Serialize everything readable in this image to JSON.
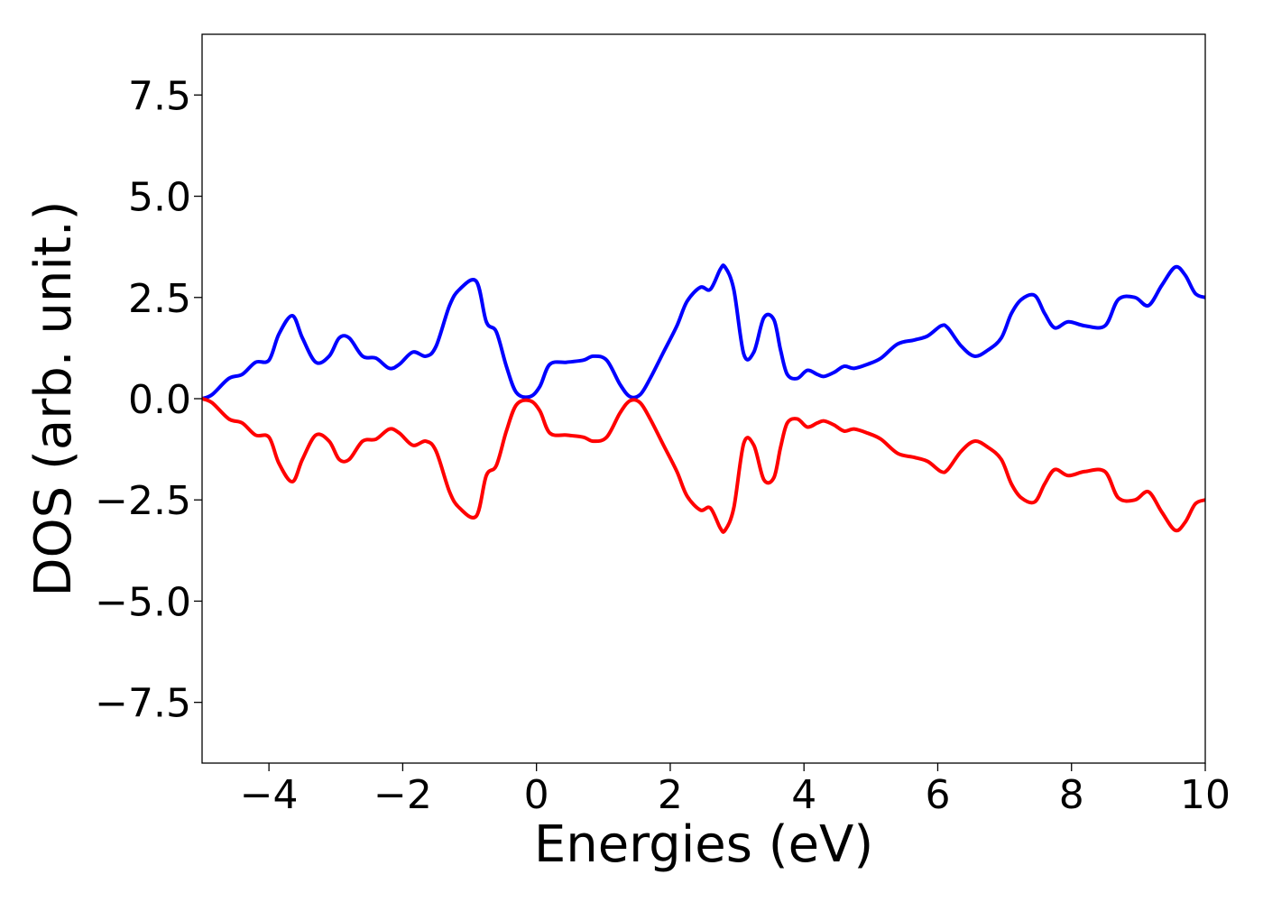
{
  "chart_data": {
    "type": "line",
    "title": "",
    "xlabel": "Energies (eV)",
    "ylabel": "DOS (arb. unit.)",
    "xlim": [
      -5,
      10
    ],
    "ylim": [
      -9,
      9
    ],
    "x_ticks": [
      -4,
      -2,
      0,
      2,
      4,
      6,
      8,
      10
    ],
    "x_tick_labels": [
      "−4",
      "−2",
      "0",
      "2",
      "4",
      "6",
      "8",
      "10"
    ],
    "y_ticks": [
      7.5,
      5.0,
      2.5,
      0.0,
      -2.5,
      -5.0,
      -7.5
    ],
    "y_tick_labels": [
      "7.5",
      "5.0",
      "2.5",
      "0.0",
      "−2.5",
      "−5.0",
      "−7.5"
    ],
    "grid": false,
    "series": [
      {
        "color": "#0000ff",
        "x": [
          -5.0,
          -4.85,
          -4.6,
          -4.4,
          -4.2,
          -4.0,
          -3.85,
          -3.65,
          -3.5,
          -3.3,
          -3.1,
          -2.95,
          -2.8,
          -2.6,
          -2.4,
          -2.2,
          -2.05,
          -1.85,
          -1.65,
          -1.5,
          -1.3,
          -1.15,
          -0.9,
          -0.75,
          -0.6,
          -0.45,
          -0.3,
          -0.1,
          0.05,
          0.2,
          0.45,
          0.7,
          0.85,
          1.05,
          1.25,
          1.4,
          1.55,
          1.7,
          1.9,
          2.1,
          2.25,
          2.45,
          2.6,
          2.75,
          2.82,
          2.95,
          3.1,
          3.25,
          3.4,
          3.55,
          3.65,
          3.75,
          3.9,
          4.05,
          4.2,
          4.3,
          4.45,
          4.6,
          4.75,
          4.95,
          5.15,
          5.4,
          5.65,
          5.85,
          6.05,
          6.15,
          6.35,
          6.55,
          6.75,
          6.95,
          7.1,
          7.25,
          7.45,
          7.6,
          7.75,
          7.95,
          8.2,
          8.5,
          8.7,
          8.95,
          9.15,
          9.35,
          9.55,
          9.7,
          9.85,
          10.0
        ],
        "y": [
          0.0,
          0.1,
          0.5,
          0.6,
          0.9,
          0.95,
          1.6,
          2.05,
          1.5,
          0.9,
          1.05,
          1.5,
          1.5,
          1.05,
          1.0,
          0.75,
          0.85,
          1.15,
          1.05,
          1.3,
          2.3,
          2.7,
          2.9,
          1.9,
          1.65,
          0.8,
          0.15,
          0.05,
          0.3,
          0.85,
          0.9,
          0.95,
          1.05,
          0.95,
          0.35,
          0.05,
          0.1,
          0.5,
          1.15,
          1.8,
          2.4,
          2.75,
          2.7,
          3.2,
          3.25,
          2.7,
          1.1,
          1.15,
          2.0,
          1.95,
          1.2,
          0.6,
          0.5,
          0.7,
          0.6,
          0.55,
          0.65,
          0.8,
          0.75,
          0.85,
          1.0,
          1.35,
          1.45,
          1.55,
          1.8,
          1.75,
          1.3,
          1.05,
          1.2,
          1.5,
          2.1,
          2.45,
          2.55,
          2.1,
          1.75,
          1.9,
          1.8,
          1.8,
          2.45,
          2.5,
          2.3,
          2.8,
          3.25,
          3.05,
          2.6,
          2.5
        ]
      },
      {
        "color": "#ff0000",
        "x": [
          -5.0,
          -4.85,
          -4.6,
          -4.4,
          -4.2,
          -4.0,
          -3.85,
          -3.65,
          -3.5,
          -3.3,
          -3.1,
          -2.95,
          -2.8,
          -2.6,
          -2.4,
          -2.2,
          -2.05,
          -1.85,
          -1.65,
          -1.5,
          -1.3,
          -1.15,
          -0.9,
          -0.75,
          -0.6,
          -0.45,
          -0.3,
          -0.1,
          0.05,
          0.2,
          0.45,
          0.7,
          0.85,
          1.05,
          1.25,
          1.4,
          1.55,
          1.7,
          1.9,
          2.1,
          2.25,
          2.45,
          2.6,
          2.75,
          2.82,
          2.95,
          3.1,
          3.25,
          3.4,
          3.55,
          3.65,
          3.75,
          3.9,
          4.05,
          4.2,
          4.3,
          4.45,
          4.6,
          4.75,
          4.95,
          5.15,
          5.4,
          5.65,
          5.85,
          6.05,
          6.15,
          6.35,
          6.55,
          6.75,
          6.95,
          7.1,
          7.25,
          7.45,
          7.6,
          7.75,
          7.95,
          8.2,
          8.5,
          8.7,
          8.95,
          9.15,
          9.35,
          9.55,
          9.7,
          9.85,
          10.0
        ],
        "y": [
          0.0,
          -0.1,
          -0.5,
          -0.6,
          -0.9,
          -0.95,
          -1.6,
          -2.05,
          -1.5,
          -0.9,
          -1.05,
          -1.5,
          -1.5,
          -1.05,
          -1.0,
          -0.75,
          -0.85,
          -1.15,
          -1.05,
          -1.3,
          -2.3,
          -2.7,
          -2.9,
          -1.9,
          -1.65,
          -0.8,
          -0.15,
          -0.05,
          -0.3,
          -0.85,
          -0.9,
          -0.95,
          -1.05,
          -0.95,
          -0.35,
          -0.05,
          -0.1,
          -0.5,
          -1.15,
          -1.8,
          -2.4,
          -2.75,
          -2.7,
          -3.2,
          -3.25,
          -2.7,
          -1.1,
          -1.15,
          -2.0,
          -1.95,
          -1.2,
          -0.6,
          -0.5,
          -0.7,
          -0.6,
          -0.55,
          -0.65,
          -0.8,
          -0.75,
          -0.85,
          -1.0,
          -1.35,
          -1.45,
          -1.55,
          -1.8,
          -1.75,
          -1.3,
          -1.05,
          -1.2,
          -1.5,
          -2.1,
          -2.45,
          -2.55,
          -2.1,
          -1.75,
          -1.9,
          -1.8,
          -1.8,
          -2.45,
          -2.5,
          -2.3,
          -2.8,
          -3.25,
          -3.05,
          -2.6,
          -2.5
        ]
      }
    ]
  }
}
